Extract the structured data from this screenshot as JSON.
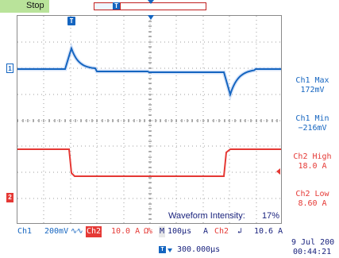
{
  "status": {
    "run_state": "Stop"
  },
  "record_view": {
    "trigger_icon": "T"
  },
  "trigger_marker": {
    "label": "T"
  },
  "channel_markers": {
    "ch1": "1",
    "ch2": "2"
  },
  "measurements": [
    {
      "label": "Ch1 Max",
      "value": "172mV",
      "color": "#1565c0"
    },
    {
      "label": "Ch1 Min",
      "value": "−216mV",
      "color": "#1565c0"
    },
    {
      "label": "Ch2 High",
      "value": "18.0 A",
      "color": "#e53935"
    },
    {
      "label": "Ch2 Low",
      "value": "8.60 A",
      "color": "#e53935"
    }
  ],
  "waveform_intensity": {
    "label": "Waveform Intensity:",
    "value": "17%"
  },
  "readouts": {
    "ch1_label": "Ch1",
    "ch1_scale": "200mV",
    "ch1_bw": "∿∿",
    "ch2_label": "Ch2",
    "ch2_scale": "10.0 A",
    "ch2_impedance": "Ω%",
    "m_label": "M",
    "timebase": "100µs",
    "trigger_mode": "A",
    "trigger_source": "Ch2",
    "trigger_slope": "↲",
    "trigger_level": "10.6 A",
    "date": "9 Jul  200",
    "time": "00:44:21",
    "position_icon": "T",
    "position": "300.000µs"
  },
  "colors": {
    "ch1": "#1565c0",
    "ch2": "#e53935",
    "grid": "#9e9e9e",
    "run_bg": "#b9e39a"
  }
}
